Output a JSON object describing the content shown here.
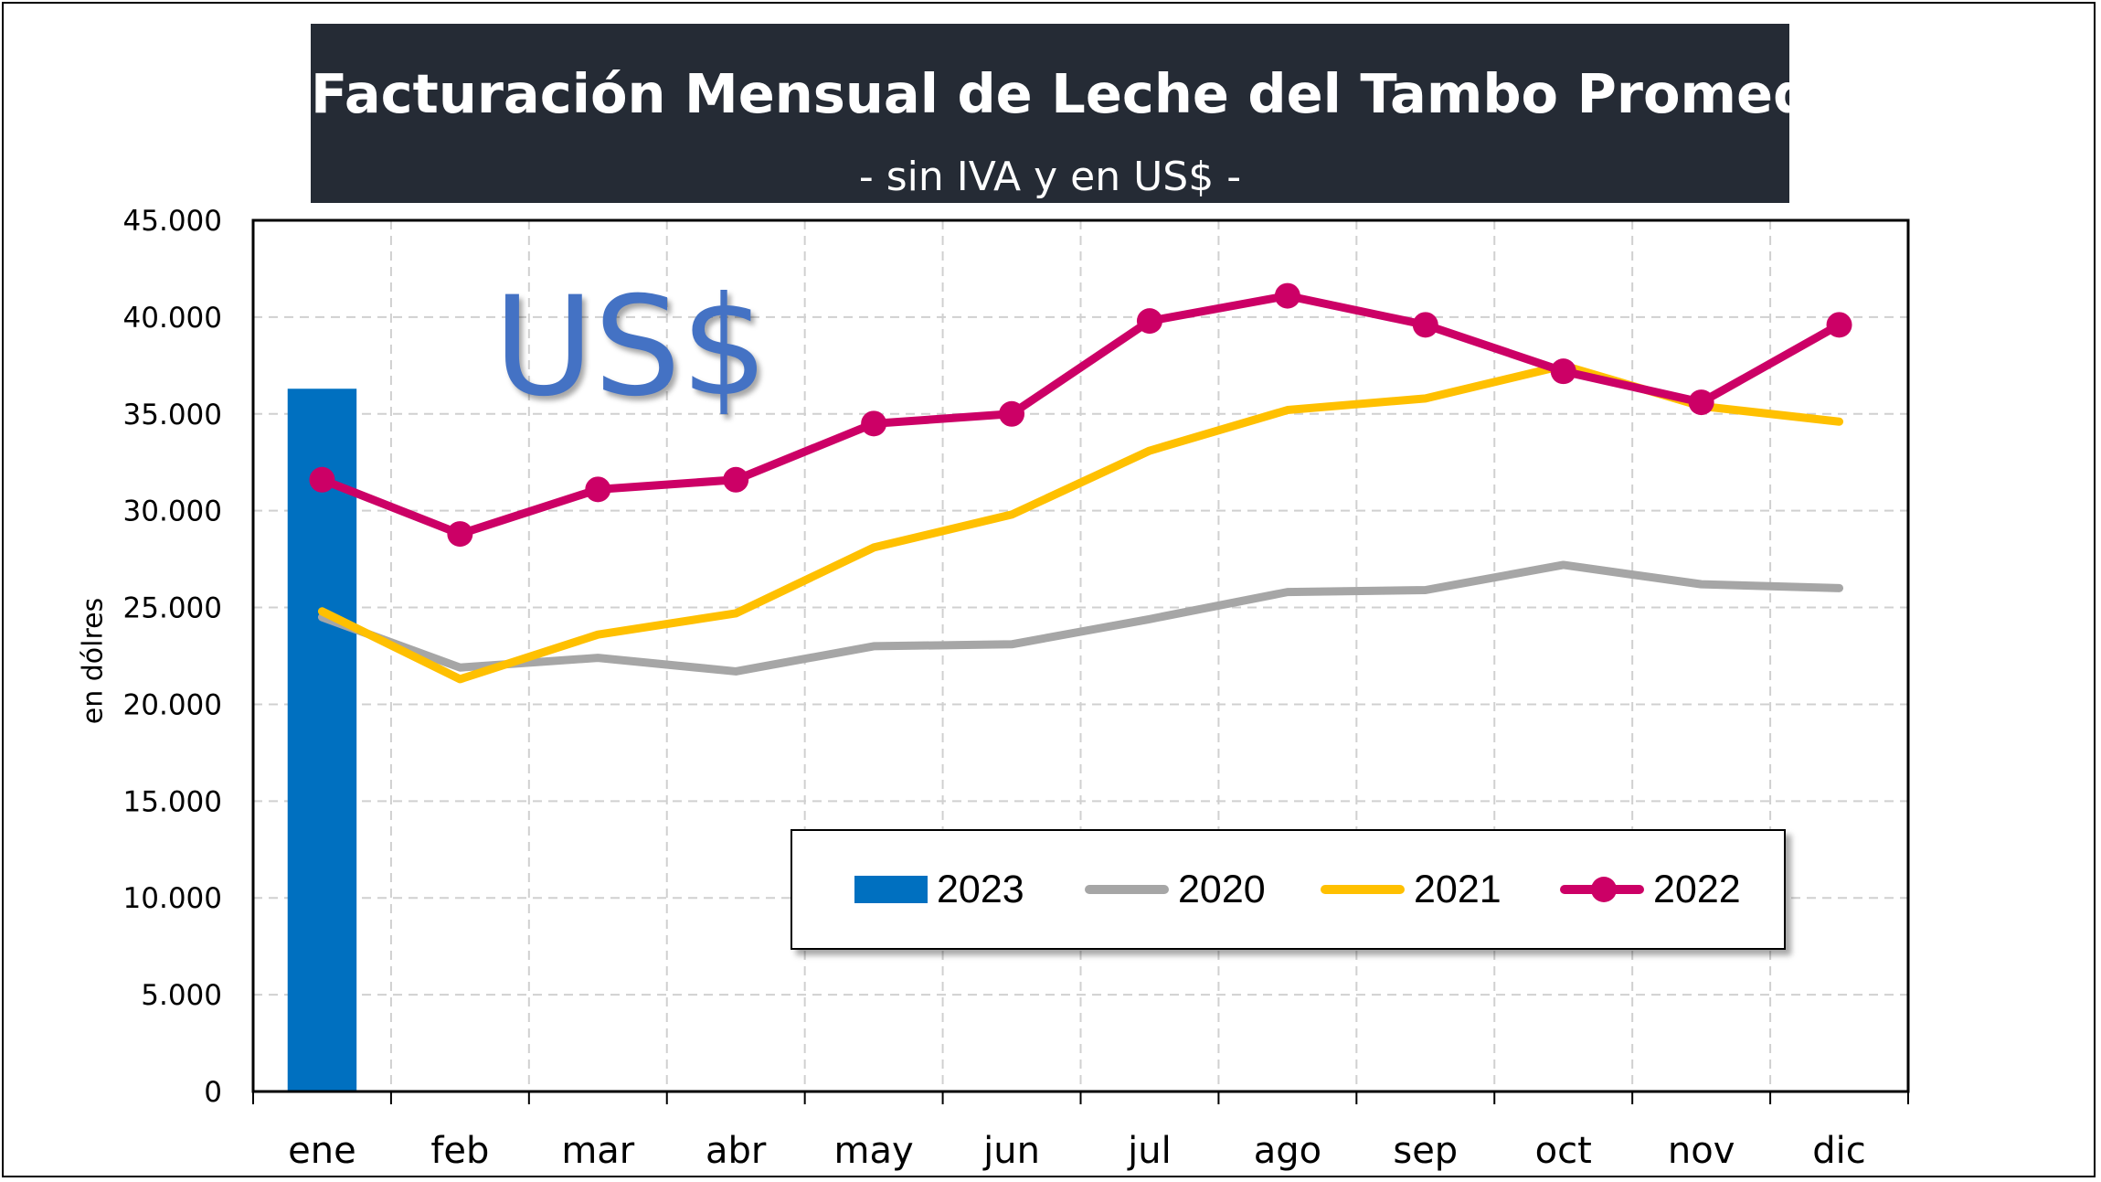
{
  "title": "Facturación Mensual de Leche del Tambo Promedio",
  "subtitle": "- sin IVA y en US$ -",
  "watermark": "US$",
  "colors": {
    "title_bg": "#252b35",
    "s2023": "#0070c0",
    "s2020": "#a6a6a6",
    "s2021": "#ffc000",
    "s2022": "#cc0066",
    "grid": "#d0d0d0",
    "watermark": "#4472c4"
  },
  "legend": [
    {
      "label": "2023",
      "kind": "bar",
      "color": "#0070c0"
    },
    {
      "label": "2020",
      "kind": "line",
      "color": "#a6a6a6"
    },
    {
      "label": "2021",
      "kind": "line",
      "color": "#ffc000"
    },
    {
      "label": "2022",
      "kind": "line-marker",
      "color": "#cc0066"
    }
  ],
  "chart_data": {
    "type": "line",
    "title": "Facturación Mensual de Leche del Tambo Promedio",
    "subtitle": "- sin IVA y en US$ -",
    "xlabel": "",
    "ylabel": "en dólres",
    "ylim": [
      0,
      45000
    ],
    "yticks": [
      0,
      5000,
      10000,
      15000,
      20000,
      25000,
      30000,
      35000,
      40000,
      45000
    ],
    "ytick_labels": [
      "0",
      "5.000",
      "10.000",
      "15.000",
      "20.000",
      "25.000",
      "30.000",
      "35.000",
      "40.000",
      "45.000"
    ],
    "grid": true,
    "legend_position": "bottom-right",
    "categories": [
      "ene",
      "feb",
      "mar",
      "abr",
      "may",
      "jun",
      "jul",
      "ago",
      "sep",
      "oct",
      "nov",
      "dic"
    ],
    "series": [
      {
        "name": "2023",
        "type": "bar",
        "color": "#0070c0",
        "values": [
          36300,
          null,
          null,
          null,
          null,
          null,
          null,
          null,
          null,
          null,
          null,
          null
        ]
      },
      {
        "name": "2020",
        "type": "line",
        "color": "#a6a6a6",
        "values": [
          24500,
          21900,
          22400,
          21700,
          23000,
          23100,
          24400,
          25800,
          25900,
          27200,
          26200,
          26000
        ]
      },
      {
        "name": "2021",
        "type": "line",
        "color": "#ffc000",
        "values": [
          24800,
          21300,
          23600,
          24700,
          28100,
          29800,
          33100,
          35200,
          35800,
          37500,
          35400,
          34600
        ]
      },
      {
        "name": "2022",
        "type": "line",
        "color": "#cc0066",
        "marker": true,
        "values": [
          31600,
          28800,
          31100,
          31600,
          34500,
          35000,
          39800,
          41100,
          39600,
          37200,
          35600,
          39600
        ]
      }
    ]
  }
}
